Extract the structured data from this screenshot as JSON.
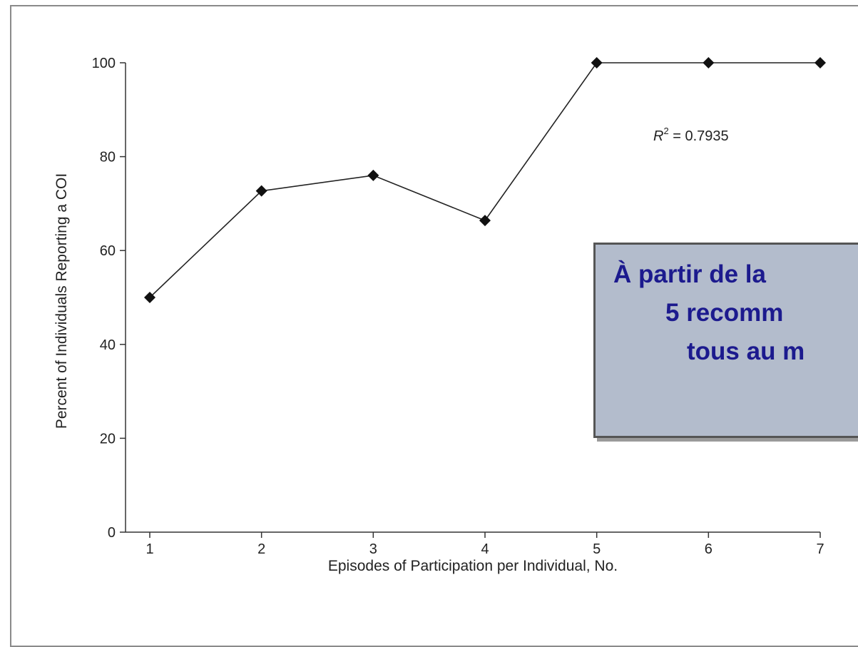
{
  "chart_data": {
    "type": "line",
    "x": [
      1,
      2,
      3,
      4,
      5,
      6,
      7
    ],
    "series": [
      {
        "values": [
          50,
          72.7,
          76,
          66.4,
          100,
          100,
          100
        ]
      }
    ],
    "xlabel": "Episodes of Participation per Individual, No.",
    "ylabel": "Percent of Individuals Reporting a COI",
    "xticks": [
      "1",
      "2",
      "3",
      "4",
      "5",
      "6",
      "7"
    ],
    "yticks": [
      "0",
      "20",
      "40",
      "60",
      "80",
      "100"
    ],
    "ylim": [
      0,
      100
    ],
    "grid": false,
    "annotation": {
      "symbol": "R",
      "superscript": "2",
      "text": " = 0.7935"
    },
    "callout_lines": [
      "À partir de la",
      "5 recomm",
      "tous au m"
    ],
    "colors": {
      "line": "#222222",
      "marker": "#111111",
      "callout_bg": "#b3bccc",
      "callout_text": "#1c1a8e"
    }
  }
}
